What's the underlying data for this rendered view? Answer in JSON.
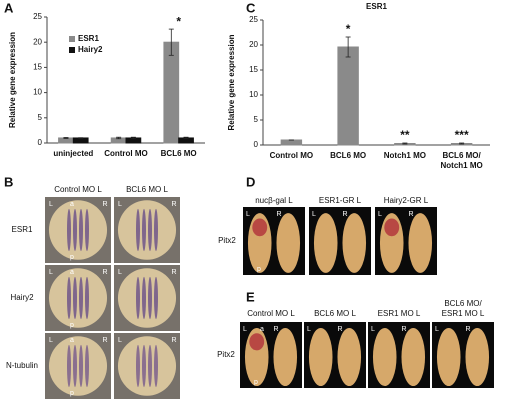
{
  "chart_data": [
    {
      "type": "bar",
      "ylabel": "Relative gene expression",
      "categories": [
        "uninjected",
        "Control MO",
        "BCL6 MO"
      ],
      "series": [
        {
          "name": "ESR1",
          "color": "#8a8a8a",
          "values": [
            1,
            1,
            20
          ],
          "errors": [
            0.1,
            0.15,
            2.6
          ]
        },
        {
          "name": "Hairy2",
          "color": "#111111",
          "values": [
            1,
            1,
            1
          ],
          "errors": [
            0.05,
            0.15,
            0.15
          ]
        }
      ],
      "annotations": [
        null,
        null,
        "*"
      ],
      "ylim": [
        0,
        25
      ],
      "yticks": [
        0,
        5,
        10,
        15,
        20,
        25
      ],
      "legend": "upper left"
    },
    {
      "type": "bar",
      "title": "ESR1",
      "ylabel": "Relative gene expression",
      "categories": [
        "Control MO",
        "BCL6 MO",
        "Notch1 MO",
        [
          "BCL6 MO/",
          "Notch1 MO"
        ]
      ],
      "values": [
        1,
        19.6,
        0.3,
        0.3
      ],
      "errors": [
        0,
        2,
        0.1,
        0.1
      ],
      "color": "#8a8a8a",
      "annotations": [
        null,
        "*",
        "**",
        "***"
      ],
      "ylim": [
        0,
        25
      ],
      "yticks": [
        0,
        5,
        10,
        15,
        20,
        25
      ]
    }
  ],
  "panel_letters": [
    "A",
    "B",
    "C",
    "D",
    "E"
  ],
  "panel_b": {
    "columns": [
      "Control MO L",
      "BCL6 MO L"
    ],
    "rows": [
      "ESR1",
      "Hairy2",
      "N-tubulin"
    ],
    "orientation": [
      "L",
      "R",
      "a",
      "p"
    ]
  },
  "panel_d": {
    "columns": [
      "nucβ-gal L",
      "ESR1-GR L",
      "Hairy2-GR L"
    ],
    "row": "Pitx2",
    "orientation": [
      "L",
      "R",
      "p"
    ]
  },
  "panel_e": {
    "columns": [
      "Control MO L",
      "BCL6 MO L",
      "ESR1 MO L",
      [
        "BCL6 MO/",
        "ESR1 MO L"
      ]
    ],
    "row": "Pitx2",
    "orientation": [
      "L",
      "R",
      "a",
      "p"
    ]
  }
}
